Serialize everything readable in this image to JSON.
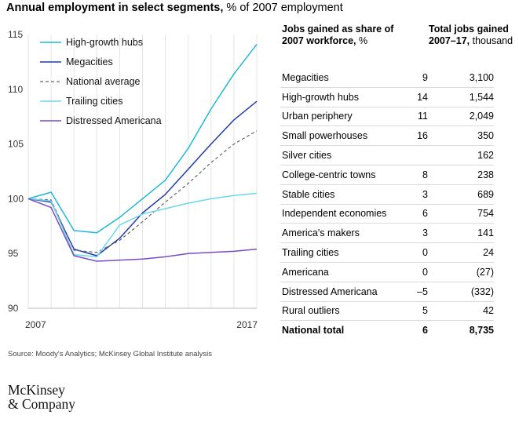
{
  "title": {
    "bold": "Annual employment in select segments,",
    "normal": " % of 2007 employment"
  },
  "chart_data": {
    "type": "line",
    "title": "Annual employment in select segments, % of 2007 employment",
    "x": [
      2007,
      2008,
      2009,
      2010,
      2011,
      2012,
      2013,
      2014,
      2015,
      2016,
      2017
    ],
    "xticks": [
      "2007",
      "2017"
    ],
    "ylim": [
      90,
      115
    ],
    "yticks": [
      90,
      95,
      100,
      105,
      110,
      115
    ],
    "legend_position": "top-left",
    "series": [
      {
        "name": "High-growth hubs",
        "color": "#1fb8d8",
        "dash": false,
        "values": [
          100,
          100.6,
          97.1,
          96.9,
          98.3,
          100,
          101.7,
          104.6,
          108.2,
          111.4,
          114.1
        ]
      },
      {
        "name": "Megacities",
        "color": "#1f3ba8",
        "dash": false,
        "values": [
          100,
          99.7,
          95.4,
          94.8,
          96.4,
          98.7,
          100.4,
          102.7,
          105,
          107.2,
          108.9
        ]
      },
      {
        "name": "National average",
        "color": "#666666",
        "dash": true,
        "values": [
          100,
          99.9,
          95.3,
          95.1,
          96.2,
          97.9,
          99.7,
          101.4,
          103.3,
          105,
          106.2
        ]
      },
      {
        "name": "Trailing cities",
        "color": "#6cd6ee",
        "dash": false,
        "values": [
          100,
          99.8,
          94.9,
          94.7,
          97.6,
          98.6,
          99.1,
          99.6,
          100,
          100.3,
          100.5
        ]
      },
      {
        "name": "Distressed Americana",
        "color": "#7a4cc4",
        "dash": false,
        "values": [
          100,
          99.2,
          94.8,
          94.3,
          94.4,
          94.5,
          94.7,
          95,
          95.1,
          95.2,
          95.4
        ]
      }
    ]
  },
  "table": {
    "header_share_bold": "Jobs gained as share of 2007 workforce,",
    "header_share_unit": " %",
    "header_jobs_bold": "Total jobs gained 2007–17,",
    "header_jobs_unit": " thousand",
    "rows": [
      {
        "name": "Megacities",
        "share": "9",
        "jobs": "3,100"
      },
      {
        "name": "High-growth hubs",
        "share": "14",
        "jobs": "1,544"
      },
      {
        "name": "Urban periphery",
        "share": "11",
        "jobs": "2,049"
      },
      {
        "name": "Small powerhouses",
        "share": "16",
        "jobs": "350"
      },
      {
        "name": "Silver cities",
        "share": "",
        "jobs": "162"
      },
      {
        "name": "College-centric towns",
        "share": "8",
        "jobs": "238"
      },
      {
        "name": "Stable cities",
        "share": "3",
        "jobs": "689"
      },
      {
        "name": "Independent economies",
        "share": "6",
        "jobs": "754"
      },
      {
        "name": "America's makers",
        "share": "3",
        "jobs": "141"
      },
      {
        "name": "Trailing cities",
        "share": "0",
        "jobs": "24"
      },
      {
        "name": "Americana",
        "share": "0",
        "jobs": "(27)"
      },
      {
        "name": "Distressed Americana",
        "share": "–5",
        "jobs": "(332)"
      },
      {
        "name": "Rural outliers",
        "share": "5",
        "jobs": "42"
      },
      {
        "name": "National total",
        "share": "6",
        "jobs": "8,735"
      }
    ]
  },
  "source": "Source: Moody's Analytics; McKinsey Global Institute analysis",
  "logo": {
    "line1": "McKinsey",
    "line2": "& Company"
  }
}
